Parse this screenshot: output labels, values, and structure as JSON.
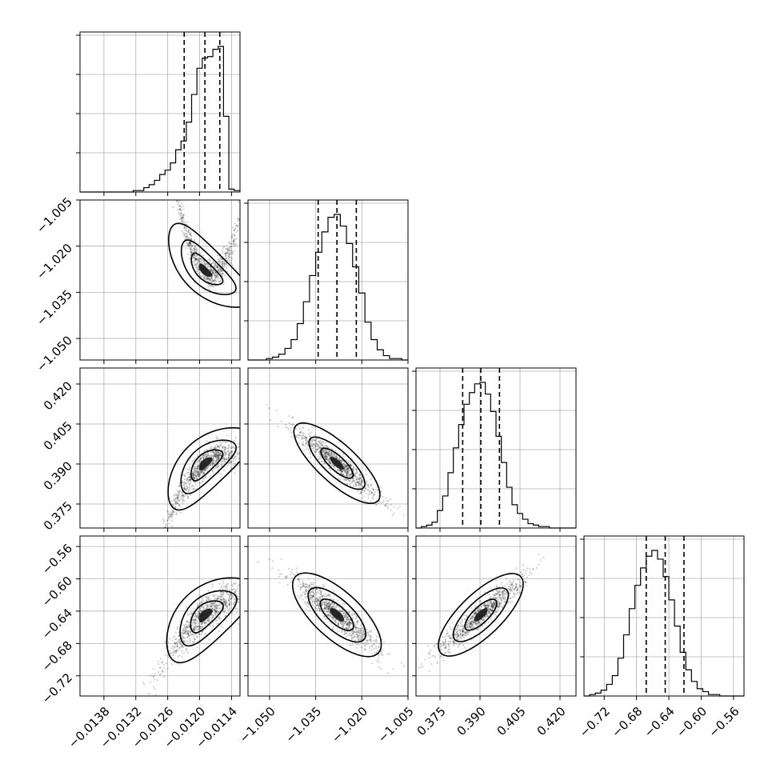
{
  "colors": {
    "ink": "#000000",
    "grid": "#b0b0b0",
    "contour_fills": [
      "#e8e8e8",
      "#bdbdbd",
      "#7a7a7a",
      "#1a1a1a"
    ]
  },
  "chart_data": {
    "type": "corner",
    "grid": true,
    "parameters": [
      {
        "range": [
          -0.01425,
          -0.01124
        ],
        "ticks": [
          -0.0138,
          -0.0132,
          -0.0126,
          -0.012,
          -0.0114
        ],
        "tick_labels": [
          "−0.0138",
          "−0.0132",
          "−0.0126",
          "−0.0120",
          "−0.0114"
        ],
        "quantiles": [
          -0.01229,
          -0.0119,
          -0.01162
        ],
        "hist_bins": [
          -0.01425,
          -0.01415,
          -0.01405,
          -0.01395,
          -0.01385,
          -0.01375,
          -0.01365,
          -0.01355,
          -0.01345,
          -0.01335,
          -0.01325,
          -0.01315,
          -0.01305,
          -0.01295,
          -0.01285,
          -0.01275,
          -0.01265,
          -0.01255,
          -0.01245,
          -0.01235,
          -0.01225,
          -0.01215,
          -0.01205,
          -0.01195,
          -0.01185,
          -0.01175,
          -0.01165,
          -0.01155,
          -0.01145,
          -0.01135,
          -0.01124
        ],
        "hist_counts": [
          0,
          0,
          0,
          0,
          0,
          0,
          0,
          0,
          0,
          0,
          1,
          1,
          3,
          5,
          8,
          12,
          15,
          20,
          29,
          35,
          48,
          67,
          85,
          92,
          93,
          98,
          100,
          52,
          2,
          1
        ]
      },
      {
        "range": [
          -1.057,
          -1.005
        ],
        "ticks": [
          -1.05,
          -1.035,
          -1.02,
          -1.005
        ],
        "tick_labels": [
          "−1.050",
          "−1.035",
          "−1.020",
          "−1.005"
        ],
        "quantiles": [
          -1.0342,
          -1.0281,
          -1.0218
        ],
        "hist_bins": [
          -1.057,
          -1.055,
          -1.053,
          -1.051,
          -1.049,
          -1.047,
          -1.045,
          -1.043,
          -1.041,
          -1.039,
          -1.037,
          -1.035,
          -1.033,
          -1.031,
          -1.029,
          -1.027,
          -1.025,
          -1.023,
          -1.021,
          -1.019,
          -1.017,
          -1.015,
          -1.013,
          -1.011,
          -1.009,
          -1.007,
          -1.005
        ],
        "hist_counts": [
          0,
          0,
          0,
          1,
          2,
          4,
          8,
          14,
          25,
          40,
          58,
          74,
          88,
          98,
          100,
          92,
          80,
          64,
          46,
          26,
          14,
          7,
          3,
          1,
          1,
          0
        ]
      },
      {
        "range": [
          0.366,
          0.426
        ],
        "ticks": [
          0.375,
          0.39,
          0.405,
          0.42
        ],
        "tick_labels": [
          "0.375",
          "0.390",
          "0.405",
          "0.420"
        ],
        "quantiles": [
          0.3835,
          0.3903,
          0.3973
        ],
        "hist_bins": [
          0.366,
          0.368,
          0.37,
          0.372,
          0.374,
          0.376,
          0.378,
          0.38,
          0.382,
          0.384,
          0.386,
          0.388,
          0.39,
          0.392,
          0.394,
          0.396,
          0.398,
          0.4,
          0.402,
          0.404,
          0.406,
          0.408,
          0.41,
          0.412,
          0.414,
          0.416,
          0.418,
          0.42,
          0.422,
          0.424,
          0.426
        ],
        "hist_counts": [
          0,
          1,
          2,
          4,
          12,
          22,
          38,
          55,
          71,
          85,
          93,
          99,
          100,
          92,
          80,
          63,
          45,
          28,
          16,
          10,
          6,
          3,
          2,
          1,
          1,
          0,
          0,
          0,
          0,
          0
        ]
      },
      {
        "range": [
          -0.745,
          -0.547
        ],
        "ticks": [
          -0.72,
          -0.68,
          -0.64,
          -0.6,
          -0.56
        ],
        "tick_labels": [
          "−0.72",
          "−0.68",
          "−0.64",
          "−0.60",
          "−0.56"
        ],
        "quantiles": [
          -0.668,
          -0.6445,
          -0.6213
        ],
        "hist_bins": [
          -0.745,
          -0.738,
          -0.731,
          -0.724,
          -0.717,
          -0.71,
          -0.703,
          -0.696,
          -0.689,
          -0.682,
          -0.675,
          -0.668,
          -0.661,
          -0.654,
          -0.647,
          -0.64,
          -0.633,
          -0.626,
          -0.619,
          -0.612,
          -0.605,
          -0.598,
          -0.591,
          -0.584,
          -0.577,
          -0.57,
          -0.563,
          -0.556,
          -0.547
        ],
        "hist_counts": [
          0,
          1,
          2,
          4,
          8,
          14,
          26,
          42,
          60,
          76,
          88,
          96,
          100,
          94,
          82,
          66,
          48,
          30,
          18,
          10,
          5,
          3,
          1,
          1,
          0,
          0,
          0,
          0
        ]
      }
    ],
    "pair_posteriors": [
      {
        "row": 1,
        "col": 0,
        "correlation": -0.93,
        "curvature": 60000,
        "tail_direction": -1
      },
      {
        "row": 2,
        "col": 0,
        "correlation": 0.92,
        "curvature": -20000,
        "tail_direction": 1
      },
      {
        "row": 3,
        "col": 0,
        "correlation": 0.9,
        "curvature": -28000,
        "tail_direction": 1
      },
      {
        "row": 2,
        "col": 1,
        "correlation": -0.95,
        "curvature": 0,
        "tail_direction": 0
      },
      {
        "row": 3,
        "col": 1,
        "correlation": -0.93,
        "curvature": 0,
        "tail_direction": 0
      },
      {
        "row": 3,
        "col": 2,
        "correlation": 0.94,
        "curvature": 0,
        "tail_direction": 0
      }
    ]
  }
}
